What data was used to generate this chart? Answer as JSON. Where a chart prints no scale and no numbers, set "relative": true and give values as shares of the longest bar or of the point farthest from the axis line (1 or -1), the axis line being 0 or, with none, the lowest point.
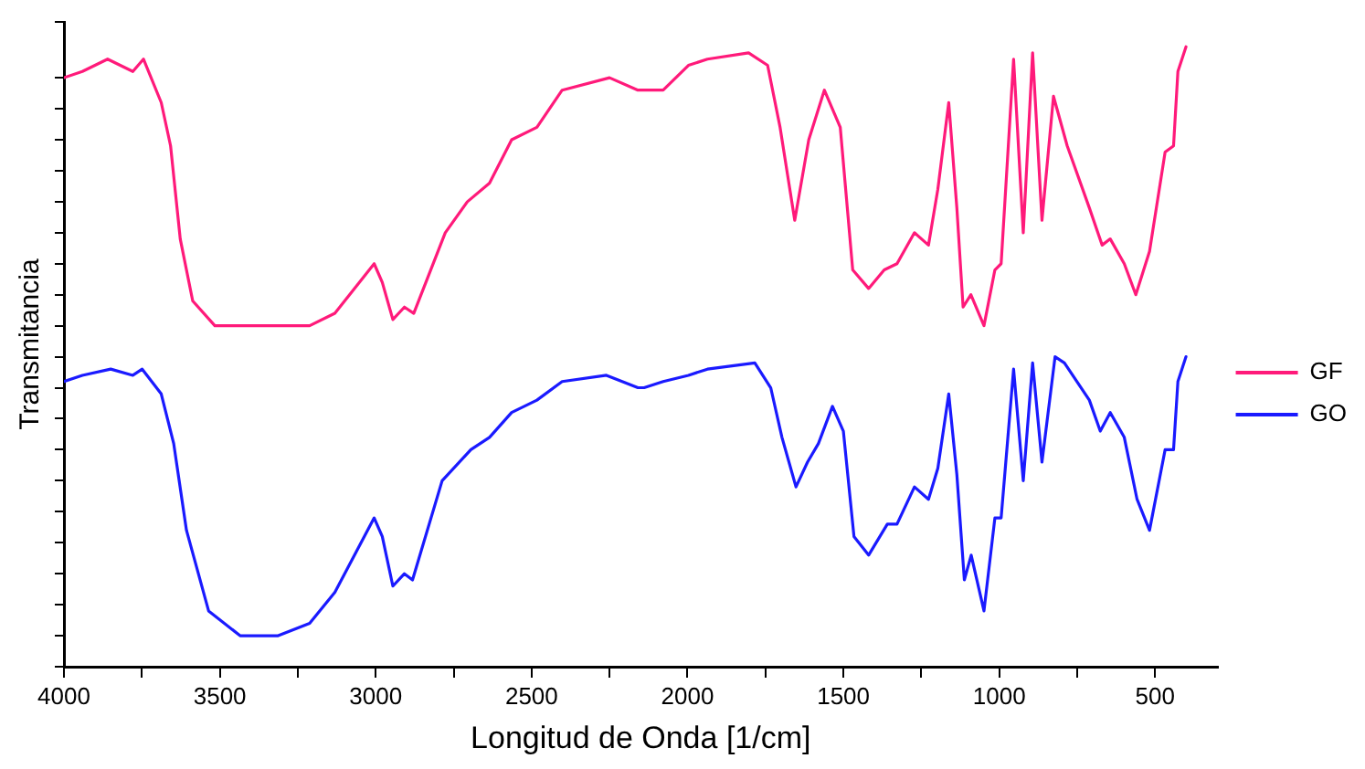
{
  "chart_data": {
    "type": "line",
    "xlabel": "Longitud de Onda [1/cm]",
    "ylabel": "Transmitancia",
    "relative": true,
    "xlim": [
      4000,
      300
    ],
    "xticks": [
      4000,
      {
        "value": 3750,
        "label": null
      },
      3500,
      {
        "value": 3250,
        "label": null
      },
      3000,
      {
        "value": 2750,
        "label": null
      },
      2500,
      {
        "value": 2250,
        "label": null
      },
      2000,
      {
        "value": 1750,
        "label": null
      },
      1500,
      {
        "value": 1250,
        "label": null
      },
      1000,
      {
        "value": 750,
        "label": null
      },
      500
    ],
    "grid": false,
    "legend": "right",
    "marker": "none",
    "line_style": "solid",
    "series": [
      {
        "name": "GF",
        "color": "#ff1a7a",
        "x": [
          4000,
          3941,
          3860,
          3779,
          3745,
          3688,
          3658,
          3627,
          3587,
          3516,
          3354,
          3212,
          3131,
          3005,
          2979,
          2945,
          2908,
          2878,
          2777,
          2706,
          2635,
          2564,
          2483,
          2402,
          2250,
          2159,
          2139,
          2078,
          1997,
          1936,
          1804,
          1743,
          1703,
          1656,
          1611,
          1561,
          1510,
          1470,
          1419,
          1369,
          1328,
          1272,
          1227,
          1197,
          1162,
          1136,
          1116,
          1091,
          1049,
          1014,
          994,
          954,
          923,
          893,
          863,
          826,
          782,
          711,
          670,
          644,
          599,
          562,
          518,
          468,
          441,
          427,
          401
        ],
        "values": [
          0.95,
          0.96,
          0.98,
          0.96,
          0.98,
          0.91,
          0.84,
          0.69,
          0.59,
          0.55,
          0.55,
          0.55,
          0.57,
          0.65,
          0.62,
          0.56,
          0.58,
          0.57,
          0.7,
          0.75,
          0.78,
          0.85,
          0.87,
          0.93,
          0.95,
          0.93,
          0.93,
          0.93,
          0.97,
          0.98,
          0.99,
          0.97,
          0.87,
          0.72,
          0.85,
          0.93,
          0.87,
          0.64,
          0.61,
          0.64,
          0.65,
          0.7,
          0.68,
          0.77,
          0.91,
          0.74,
          0.58,
          0.6,
          0.55,
          0.64,
          0.65,
          0.98,
          0.7,
          0.99,
          0.72,
          0.92,
          0.84,
          0.74,
          0.68,
          0.69,
          0.65,
          0.6,
          0.67,
          0.83,
          0.84,
          0.96,
          1
        ]
      },
      {
        "name": "GO",
        "color": "#1a1aff",
        "x": [
          4000,
          3941,
          3850,
          3779,
          3749,
          3688,
          3648,
          3607,
          3536,
          3435,
          3313,
          3212,
          3131,
          3005,
          2979,
          2945,
          2908,
          2882,
          2787,
          2695,
          2635,
          2564,
          2483,
          2402,
          2260,
          2159,
          2139,
          2078,
          1997,
          1936,
          1784,
          1733,
          1697,
          1652,
          1615,
          1580,
          1535,
          1500,
          1466,
          1419,
          1359,
          1328,
          1272,
          1227,
          1197,
          1162,
          1136,
          1112,
          1090,
          1049,
          1014,
          994,
          954,
          923,
          893,
          863,
          821,
          791,
          711,
          676,
          644,
          599,
          558,
          518,
          468,
          441,
          427,
          401
        ],
        "values": [
          0.46,
          0.47,
          0.48,
          0.47,
          0.48,
          0.44,
          0.36,
          0.22,
          0.09,
          0.05,
          0.05,
          0.07,
          0.12,
          0.24,
          0.21,
          0.13,
          0.15,
          0.14,
          0.3,
          0.35,
          0.37,
          0.41,
          0.43,
          0.46,
          0.47,
          0.45,
          0.45,
          0.46,
          0.47,
          0.48,
          0.49,
          0.45,
          0.37,
          0.29,
          0.33,
          0.36,
          0.42,
          0.38,
          0.21,
          0.18,
          0.23,
          0.23,
          0.29,
          0.27,
          0.32,
          0.44,
          0.31,
          0.14,
          0.18,
          0.09,
          0.24,
          0.24,
          0.48,
          0.3,
          0.49,
          0.33,
          0.5,
          0.49,
          0.43,
          0.38,
          0.41,
          0.37,
          0.27,
          0.22,
          0.35,
          0.35,
          0.46,
          0.5
        ]
      }
    ]
  }
}
